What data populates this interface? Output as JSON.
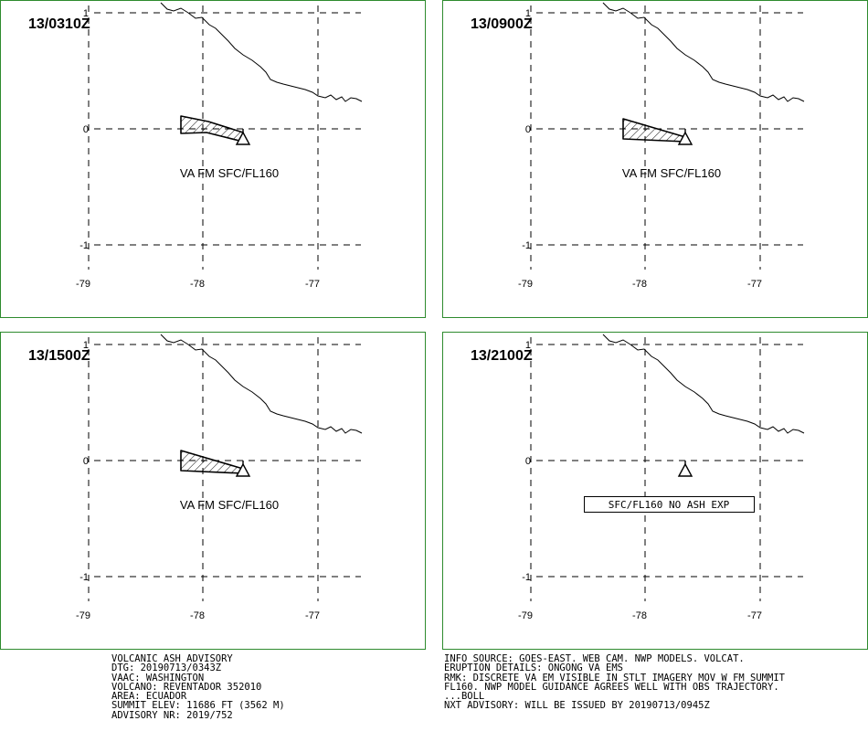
{
  "panels": [
    {
      "time": "13/0310Z",
      "label": "VA FM SFC/FL160",
      "ash": "A",
      "boxed": false
    },
    {
      "time": "13/0900Z",
      "label": "VA FM SFC/FL160",
      "ash": "B",
      "boxed": false
    },
    {
      "time": "13/1500Z",
      "label": "VA FM SFC/FL160",
      "ash": "B",
      "boxed": false
    },
    {
      "time": "13/2100Z",
      "label": "SFC/FL160 NO ASH EXP",
      "ash": "none",
      "boxed": true
    }
  ],
  "axes": {
    "lon_ticks": [
      "-79",
      "-78",
      "-77"
    ],
    "lat_ticks": [
      "1",
      "0",
      "-1"
    ]
  },
  "colors": {
    "frame": "#2e8b2e",
    "hatch": "#000000"
  },
  "advisory_left": [
    "VOLCANIC ASH ADVISORY",
    "DTG: 20190713/0343Z",
    "VAAC: WASHINGTON",
    "VOLCANO: REVENTADOR 352010",
    "AREA: ECUADOR",
    "SUMMIT ELEV: 11686 FT (3562 M)",
    "ADVISORY NR: 2019/752"
  ],
  "advisory_right": [
    "INFO SOURCE: GOES-EAST. WEB CAM. NWP MODELS. VOLCAT.",
    "ERUPTION DETAILS: ONGONG VA EMS",
    "RMK: DISCRETE VA EM VISIBLE IN STLT IMAGERY MOV W FM SUMMIT",
    "FL160. NWP MODEL GUIDANCE AGREES WELL WITH OBS TRAJECTORY.",
    "...BOLL",
    "NXT ADVISORY: WILL BE ISSUED BY 20190713/0945Z"
  ]
}
